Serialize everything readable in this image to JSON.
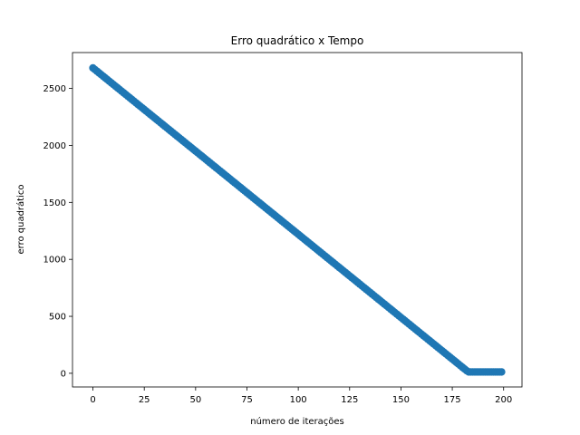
{
  "chart_data": {
    "type": "scatter",
    "title": "Erro quadrático x Tempo",
    "xlabel": "número de iterações",
    "ylabel": "erro quadrático",
    "xlim": [
      -9.95,
      208.95
    ],
    "ylim": [
      -120,
      2815
    ],
    "xticks": [
      0,
      25,
      50,
      75,
      100,
      125,
      150,
      175,
      200
    ],
    "yticks": [
      0,
      500,
      1000,
      1500,
      2000,
      2500
    ],
    "grid": false,
    "series": [
      {
        "color": "#1f77b4",
        "x_start": 0,
        "x_end": 199,
        "x_step": 1,
        "y_start": 2680,
        "y_decrement_per_iteration": 14.6,
        "y_floor": 12
      }
    ]
  }
}
